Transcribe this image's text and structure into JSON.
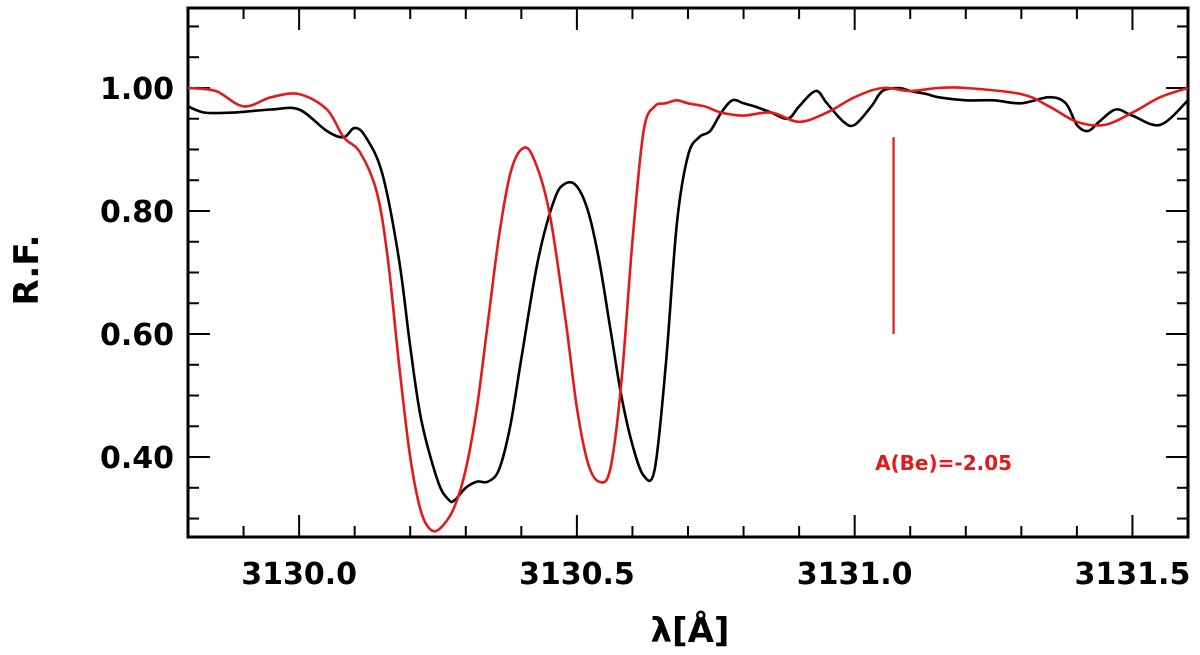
{
  "chart_data": {
    "type": "line",
    "title": "",
    "xlabel": "λ[Å]",
    "ylabel": "R.F.",
    "xlim": [
      3129.8,
      3131.6
    ],
    "ylim": [
      0.27,
      1.13
    ],
    "grid": false,
    "legend": "none",
    "x_ticks": [
      3130.0,
      3130.5,
      3131.0,
      3131.5
    ],
    "x_tick_labels": [
      "3130.0",
      "3130.5",
      "3131.0",
      "3131.5"
    ],
    "y_ticks": [
      0.4,
      0.6,
      0.8,
      1.0
    ],
    "y_tick_labels": [
      "0.40",
      "0.60",
      "0.80",
      "1.00"
    ],
    "series": [
      {
        "color": "#000000",
        "x": [
          3129.8,
          3129.83,
          3129.88,
          3129.95,
          3130.0,
          3130.05,
          3130.08,
          3130.1,
          3130.12,
          3130.15,
          3130.18,
          3130.2,
          3130.22,
          3130.25,
          3130.27,
          3130.28,
          3130.3,
          3130.32,
          3130.34,
          3130.36,
          3130.38,
          3130.4,
          3130.43,
          3130.46,
          3130.48,
          3130.5,
          3130.52,
          3130.54,
          3130.56,
          3130.58,
          3130.6,
          3130.62,
          3130.64,
          3130.66,
          3130.68,
          3130.7,
          3130.72,
          3130.74,
          3130.76,
          3130.78,
          3130.8,
          3130.82,
          3130.85,
          3130.88,
          3130.9,
          3130.93,
          3130.95,
          3130.98,
          3131.0,
          3131.03,
          3131.05,
          3131.08,
          3131.1,
          3131.13,
          3131.15,
          3131.2,
          3131.25,
          3131.3,
          3131.35,
          3131.38,
          3131.4,
          3131.42,
          3131.44,
          3131.47,
          3131.5,
          3131.55,
          3131.6
        ],
        "y": [
          0.97,
          0.96,
          0.96,
          0.965,
          0.965,
          0.93,
          0.92,
          0.935,
          0.92,
          0.86,
          0.72,
          0.58,
          0.46,
          0.36,
          0.33,
          0.33,
          0.35,
          0.36,
          0.36,
          0.38,
          0.45,
          0.56,
          0.72,
          0.82,
          0.845,
          0.84,
          0.8,
          0.72,
          0.61,
          0.5,
          0.42,
          0.37,
          0.38,
          0.55,
          0.78,
          0.89,
          0.92,
          0.93,
          0.96,
          0.98,
          0.975,
          0.97,
          0.96,
          0.95,
          0.97,
          0.995,
          0.975,
          0.945,
          0.94,
          0.97,
          0.995,
          1.0,
          0.995,
          0.99,
          0.985,
          0.98,
          0.98,
          0.975,
          0.985,
          0.975,
          0.94,
          0.93,
          0.945,
          0.965,
          0.955,
          0.94,
          0.98
        ]
      },
      {
        "color": "#e3191c",
        "x": [
          3129.8,
          3129.85,
          3129.9,
          3129.95,
          3130.0,
          3130.05,
          3130.08,
          3130.11,
          3130.14,
          3130.16,
          3130.18,
          3130.2,
          3130.22,
          3130.24,
          3130.26,
          3130.28,
          3130.3,
          3130.32,
          3130.34,
          3130.36,
          3130.38,
          3130.4,
          3130.42,
          3130.45,
          3130.48,
          3130.5,
          3130.52,
          3130.54,
          3130.56,
          3130.58,
          3130.6,
          3130.62,
          3130.64,
          3130.66,
          3130.68,
          3130.7,
          3130.73,
          3130.76,
          3130.8,
          3130.85,
          3130.9,
          3130.95,
          3131.0,
          3131.05,
          3131.1,
          3131.15,
          3131.2,
          3131.3,
          3131.35,
          3131.4,
          3131.45,
          3131.5,
          3131.55,
          3131.6
        ],
        "y": [
          1.0,
          0.995,
          0.97,
          0.985,
          0.99,
          0.965,
          0.92,
          0.895,
          0.83,
          0.72,
          0.55,
          0.4,
          0.31,
          0.28,
          0.29,
          0.32,
          0.38,
          0.48,
          0.62,
          0.76,
          0.86,
          0.9,
          0.89,
          0.8,
          0.62,
          0.48,
          0.39,
          0.36,
          0.38,
          0.52,
          0.75,
          0.93,
          0.97,
          0.975,
          0.98,
          0.975,
          0.97,
          0.96,
          0.955,
          0.96,
          0.945,
          0.96,
          0.985,
          1.0,
          0.995,
          1.0,
          1.0,
          0.99,
          0.97,
          0.945,
          0.94,
          0.96,
          0.985,
          1.0
        ]
      }
    ],
    "annotations": [
      {
        "type": "vline",
        "color": "#e3191c",
        "x": 3131.07,
        "y_from": 0.6,
        "y_to": 0.92
      },
      {
        "type": "text",
        "color": "#e3191c",
        "x": 3131.16,
        "y": 0.39,
        "text": "A(Be)=-2.05"
      }
    ]
  }
}
